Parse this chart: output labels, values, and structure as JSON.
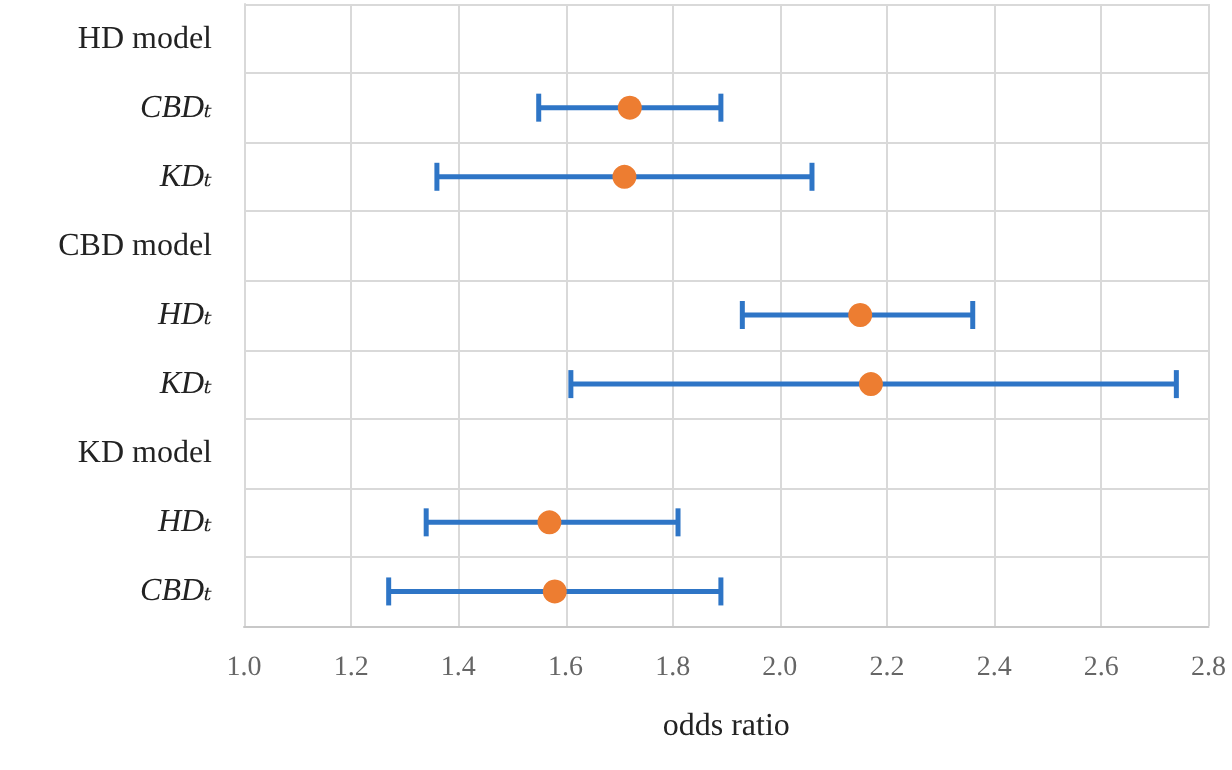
{
  "chart_data": {
    "type": "scatter",
    "orientation": "horizontal",
    "xlabel": "odds ratio",
    "categories": [
      "HD model",
      "CBDₜ",
      "KDₜ",
      "CBD model",
      "HDₜ",
      "KDₜ",
      "KD model",
      "HDₜ",
      "CBDₜ"
    ],
    "series": [
      {
        "color": "#ed7d31",
        "values": [
          null,
          1.72,
          1.71,
          null,
          2.15,
          2.17,
          null,
          1.57,
          1.58
        ],
        "errors": [
          null,
          [
            1.55,
            1.89
          ],
          [
            1.36,
            2.06
          ],
          null,
          [
            1.93,
            2.36
          ],
          [
            1.61,
            2.74
          ],
          null,
          [
            1.34,
            1.81
          ],
          [
            1.27,
            1.89
          ]
        ]
      }
    ],
    "xlim": [
      1.0,
      2.8
    ],
    "xticks": [
      {
        "value": 1,
        "label": "1.0"
      },
      1.2,
      1.4,
      1.6,
      1.8,
      {
        "value": 2,
        "label": "2.0"
      },
      2.2,
      2.4,
      2.6,
      2.8
    ],
    "grid": true,
    "marker": "circle"
  }
}
